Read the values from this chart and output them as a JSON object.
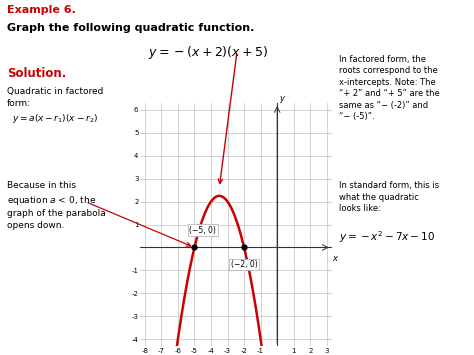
{
  "title_example": "Example 6.",
  "title_main": "Graph the following quadratic function.",
  "solution_label": "Solution.",
  "left_text1": "Quadratic in factored\nform:",
  "left_formula1": "y = a(x − r₁)(x − r₂)",
  "left_text2": "Because in this\nequation a < 0, the\ngraph of the parabola\nopens down.",
  "right_text1": "In factored form, the\nroots correspond to the\nx-intercepts. Note: The\n“+ 2” and “+ 5” are the\nsame as “− (-2)” and\n“− (-5)”.",
  "right_text2": "In standard form, this is\nwhat the quadratic\nlooks like:",
  "right_formula2": "y = −x² − 7x − 10",
  "xmin": -8,
  "xmax": 3,
  "ymin": -4,
  "ymax": 6,
  "curve_color": "#cc0000",
  "point1": [
    -5,
    0
  ],
  "point2": [
    -2,
    0
  ],
  "point1_label": "(−5, 0)",
  "point2_label": "(−2, 0)",
  "background_color": "#ffffff",
  "grid_color": "#c0c0c0",
  "axis_color": "#555555",
  "red_color": "#cc0000"
}
